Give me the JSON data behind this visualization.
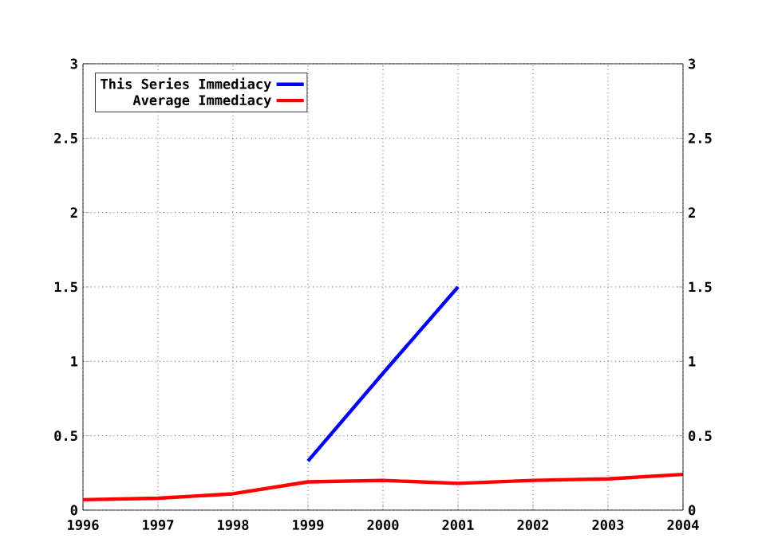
{
  "chart_data": {
    "type": "line",
    "x": [
      1996,
      1997,
      1998,
      1999,
      2000,
      2001,
      2002,
      2003,
      2004
    ],
    "series": [
      {
        "name": "This Series Immediacy",
        "color": "#0000ff",
        "values": [
          null,
          null,
          null,
          0.33,
          0.92,
          1.5,
          null,
          null,
          null
        ]
      },
      {
        "name": "Average Immediacy",
        "color": "#ff0000",
        "values": [
          0.07,
          0.08,
          0.11,
          0.19,
          0.2,
          0.18,
          0.2,
          0.21,
          0.24
        ]
      }
    ],
    "xlim": [
      1996,
      2004
    ],
    "xticks": [
      1996,
      1997,
      1998,
      1999,
      2000,
      2001,
      2002,
      2003,
      2004
    ],
    "ylim": [
      0,
      3
    ],
    "yticks": [
      0,
      0.5,
      1,
      1.5,
      2,
      2.5,
      3
    ],
    "y2lim": [
      0,
      3
    ],
    "y2ticks": [
      0,
      0.5,
      1,
      1.5,
      2,
      2.5,
      3
    ],
    "grid": true,
    "legend": "top left",
    "marker": "none",
    "line_style": "solid"
  }
}
